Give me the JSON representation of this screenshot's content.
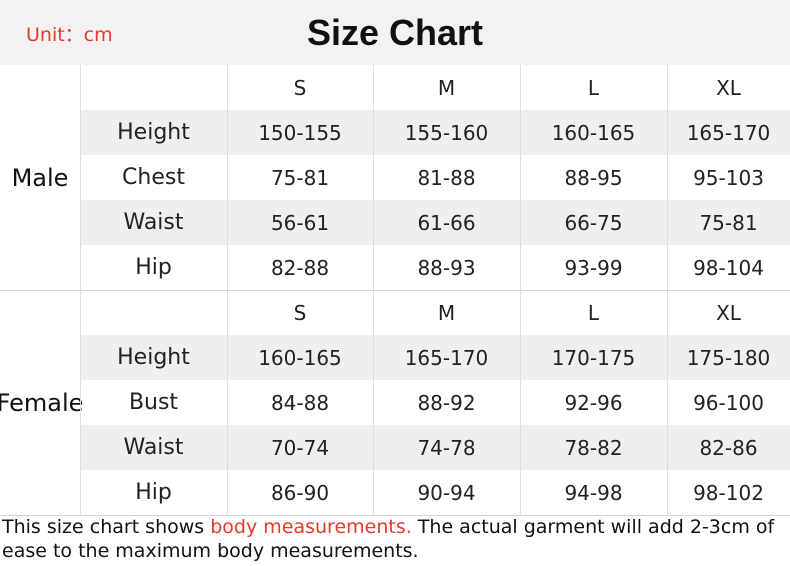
{
  "header": {
    "unit": "Unit：cm",
    "title": "Size Chart"
  },
  "sizes": [
    "S",
    "M",
    "L",
    "XL"
  ],
  "sections": [
    {
      "group": "Male",
      "rows": [
        {
          "label": "Height",
          "values": [
            "150-155",
            "155-160",
            "160-165",
            "165-170"
          ]
        },
        {
          "label": "Chest",
          "values": [
            "75-81",
            "81-88",
            "88-95",
            "95-103"
          ]
        },
        {
          "label": "Waist",
          "values": [
            "56-61",
            "61-66",
            "66-75",
            "75-81"
          ]
        },
        {
          "label": "Hip",
          "values": [
            "82-88",
            "88-93",
            "93-99",
            "98-104"
          ]
        }
      ]
    },
    {
      "group": "Female",
      "rows": [
        {
          "label": "Height",
          "values": [
            "160-165",
            "165-170",
            "170-175",
            "175-180"
          ]
        },
        {
          "label": "Bust",
          "values": [
            "84-88",
            "88-92",
            "92-96",
            "96-100"
          ]
        },
        {
          "label": "Waist",
          "values": [
            "70-74",
            "74-78",
            "78-82",
            "82-86"
          ]
        },
        {
          "label": "Hip",
          "values": [
            "86-90",
            "90-94",
            "94-98",
            "98-102"
          ]
        }
      ]
    }
  ],
  "footer": {
    "prefix": "This size chart shows ",
    "highlight": "body measurements.",
    "suffix": " The actual garment will add 2-3cm of ease to the maximum body measurements."
  },
  "colors": {
    "accent": "#e23a2a",
    "row_gray": "#efefef"
  }
}
